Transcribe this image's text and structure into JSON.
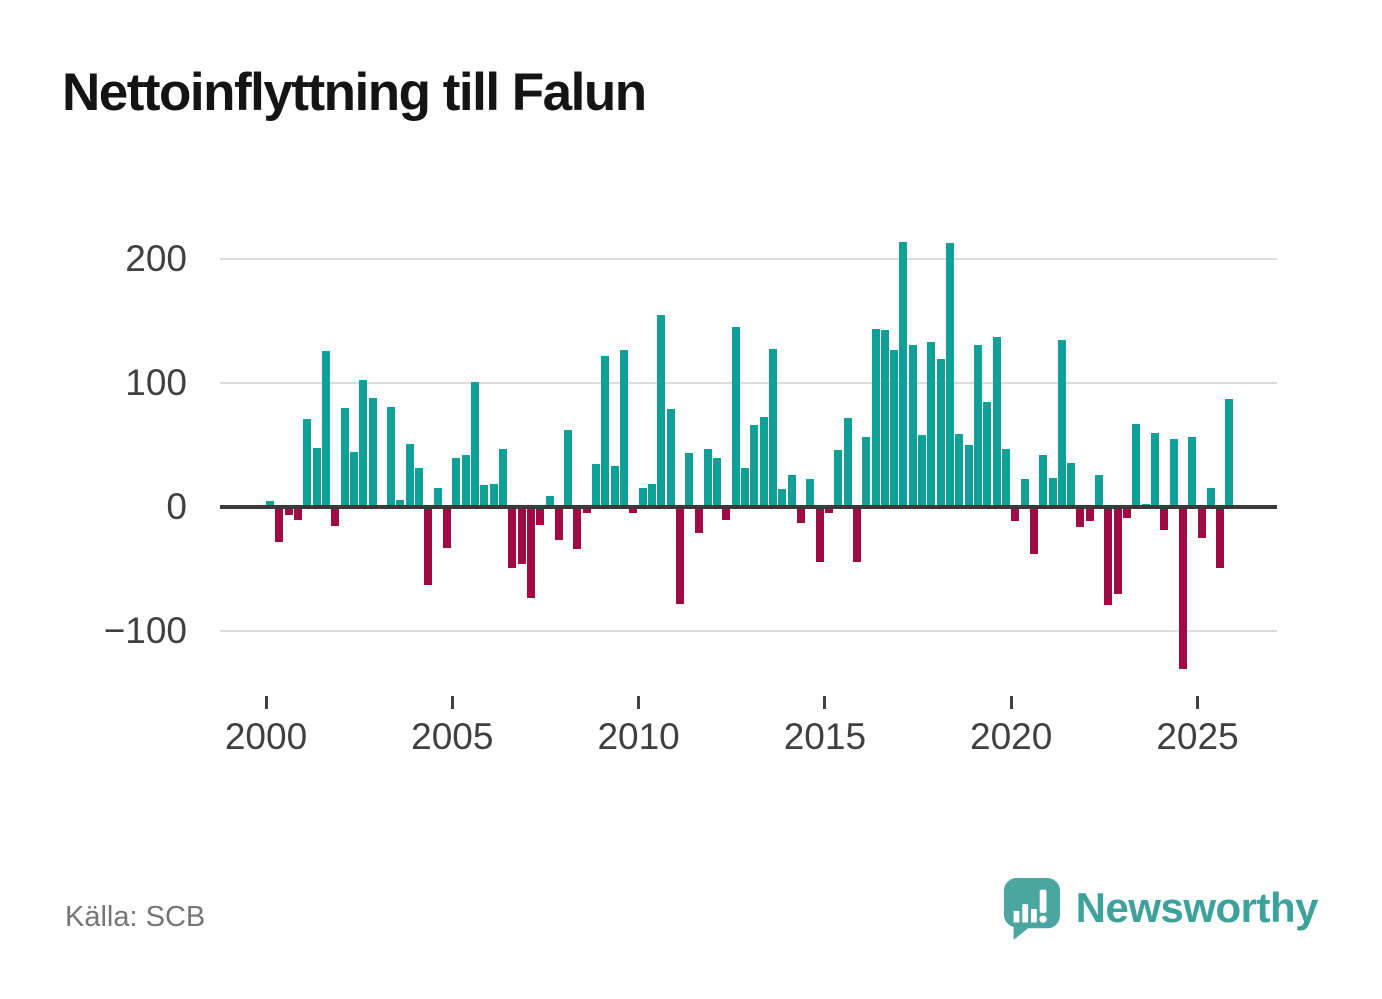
{
  "title": "Nettoinflyttning till Falun",
  "source": "Källa: SCB",
  "brand": {
    "name": "Newsworthy",
    "icon": "speech-bubble-bar-chart-icon",
    "icon_color": "#4ba5a0",
    "text_color": "#3da29b"
  },
  "colors": {
    "positive_bar": "#11a097",
    "negative_bar": "#a00b44",
    "zero_axis": "#3a3a3a",
    "gridline": "#dcdcdc",
    "tick_label": "#404040",
    "title": "#141414",
    "source_text": "#767676"
  },
  "chart_data": {
    "type": "bar",
    "title": "Nettoinflyttning till Falun",
    "frequency": "quarterly",
    "start_year": 2000,
    "x_tick_years": [
      2000,
      2005,
      2010,
      2015,
      2020,
      2025
    ],
    "x_tick_labels": [
      "2000",
      "2005",
      "2010",
      "2015",
      "2020",
      "2025"
    ],
    "y_ticks": [
      200,
      100,
      0,
      -100
    ],
    "y_tick_labels": [
      "200",
      "100",
      "0",
      "−100"
    ],
    "ylim": [
      -145,
      235
    ],
    "grid": "horizontal",
    "legend": "none",
    "series": [
      {
        "year": 2000,
        "quarters": [
          5,
          -28,
          -6,
          -10
        ]
      },
      {
        "year": 2001,
        "quarters": [
          71,
          48,
          126,
          -15
        ]
      },
      {
        "year": 2002,
        "quarters": [
          80,
          45,
          103,
          88
        ]
      },
      {
        "year": 2003,
        "quarters": [
          0,
          81,
          6,
          51
        ]
      },
      {
        "year": 2004,
        "quarters": [
          32,
          -63,
          16,
          -33
        ]
      },
      {
        "year": 2005,
        "quarters": [
          40,
          42,
          101,
          18
        ]
      },
      {
        "year": 2006,
        "quarters": [
          19,
          47,
          -49,
          -46
        ]
      },
      {
        "year": 2007,
        "quarters": [
          -73,
          -14,
          9,
          -26
        ]
      },
      {
        "year": 2008,
        "quarters": [
          62,
          -34,
          -5,
          35
        ]
      },
      {
        "year": 2009,
        "quarters": [
          122,
          33,
          127,
          -5
        ]
      },
      {
        "year": 2010,
        "quarters": [
          16,
          19,
          155,
          79
        ]
      },
      {
        "year": 2011,
        "quarters": [
          -78,
          44,
          -21,
          47
        ]
      },
      {
        "year": 2012,
        "quarters": [
          40,
          -10,
          145,
          32
        ]
      },
      {
        "year": 2013,
        "quarters": [
          66,
          73,
          128,
          15
        ]
      },
      {
        "year": 2014,
        "quarters": [
          26,
          -13,
          23,
          -44
        ]
      },
      {
        "year": 2015,
        "quarters": [
          -5,
          46,
          72,
          -44
        ]
      },
      {
        "year": 2016,
        "quarters": [
          57,
          144,
          143,
          127
        ]
      },
      {
        "year": 2017,
        "quarters": [
          214,
          131,
          58,
          133
        ]
      },
      {
        "year": 2018,
        "quarters": [
          120,
          213,
          59,
          50
        ]
      },
      {
        "year": 2019,
        "quarters": [
          131,
          85,
          137,
          47
        ]
      },
      {
        "year": 2020,
        "quarters": [
          -11,
          23,
          -38,
          42
        ]
      },
      {
        "year": 2021,
        "quarters": [
          24,
          135,
          36,
          -16
        ]
      },
      {
        "year": 2022,
        "quarters": [
          -11,
          26,
          -79,
          -70
        ]
      },
      {
        "year": 2023,
        "quarters": [
          -9,
          67,
          3,
          60
        ]
      },
      {
        "year": 2024,
        "quarters": [
          -18,
          55,
          -130,
          57
        ]
      },
      {
        "year": 2025,
        "quarters": [
          -25,
          16,
          -49,
          87
        ]
      }
    ]
  }
}
